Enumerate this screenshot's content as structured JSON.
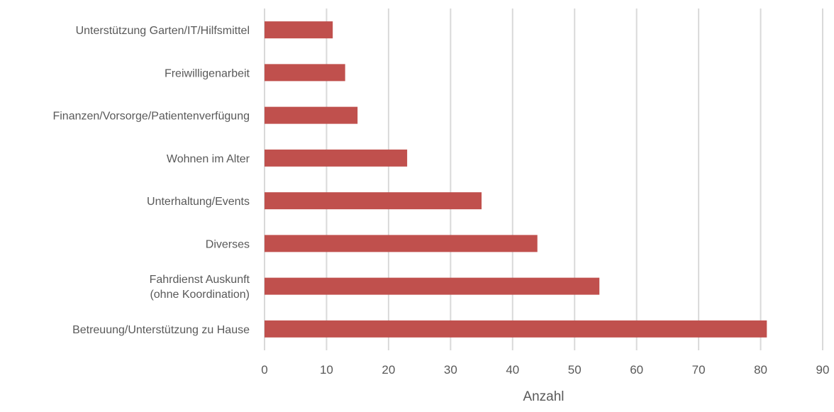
{
  "chart_data": {
    "type": "bar",
    "orientation": "horizontal",
    "categories": [
      "Unterstützung Garten/IT/Hilfsmittel",
      "Freiwilligenarbeit",
      "Finanzen/Vorsorge/Patientenverfügung",
      "Wohnen im Alter",
      "Unterhaltung/Events",
      "Diverses",
      "Fahrdienst Auskunft\n(ohne Koordination)",
      "Betreuung/Unterstützung zu Hause"
    ],
    "values": [
      11,
      13,
      15,
      23,
      35,
      44,
      54,
      81
    ],
    "xlabel": "Anzahl",
    "ylabel": "",
    "xlim": [
      0,
      90
    ],
    "xticks": [
      0,
      10,
      20,
      30,
      40,
      50,
      60,
      70,
      80,
      90
    ],
    "grid": "vertical",
    "legend": "none",
    "bar_color": "#c0504d"
  }
}
